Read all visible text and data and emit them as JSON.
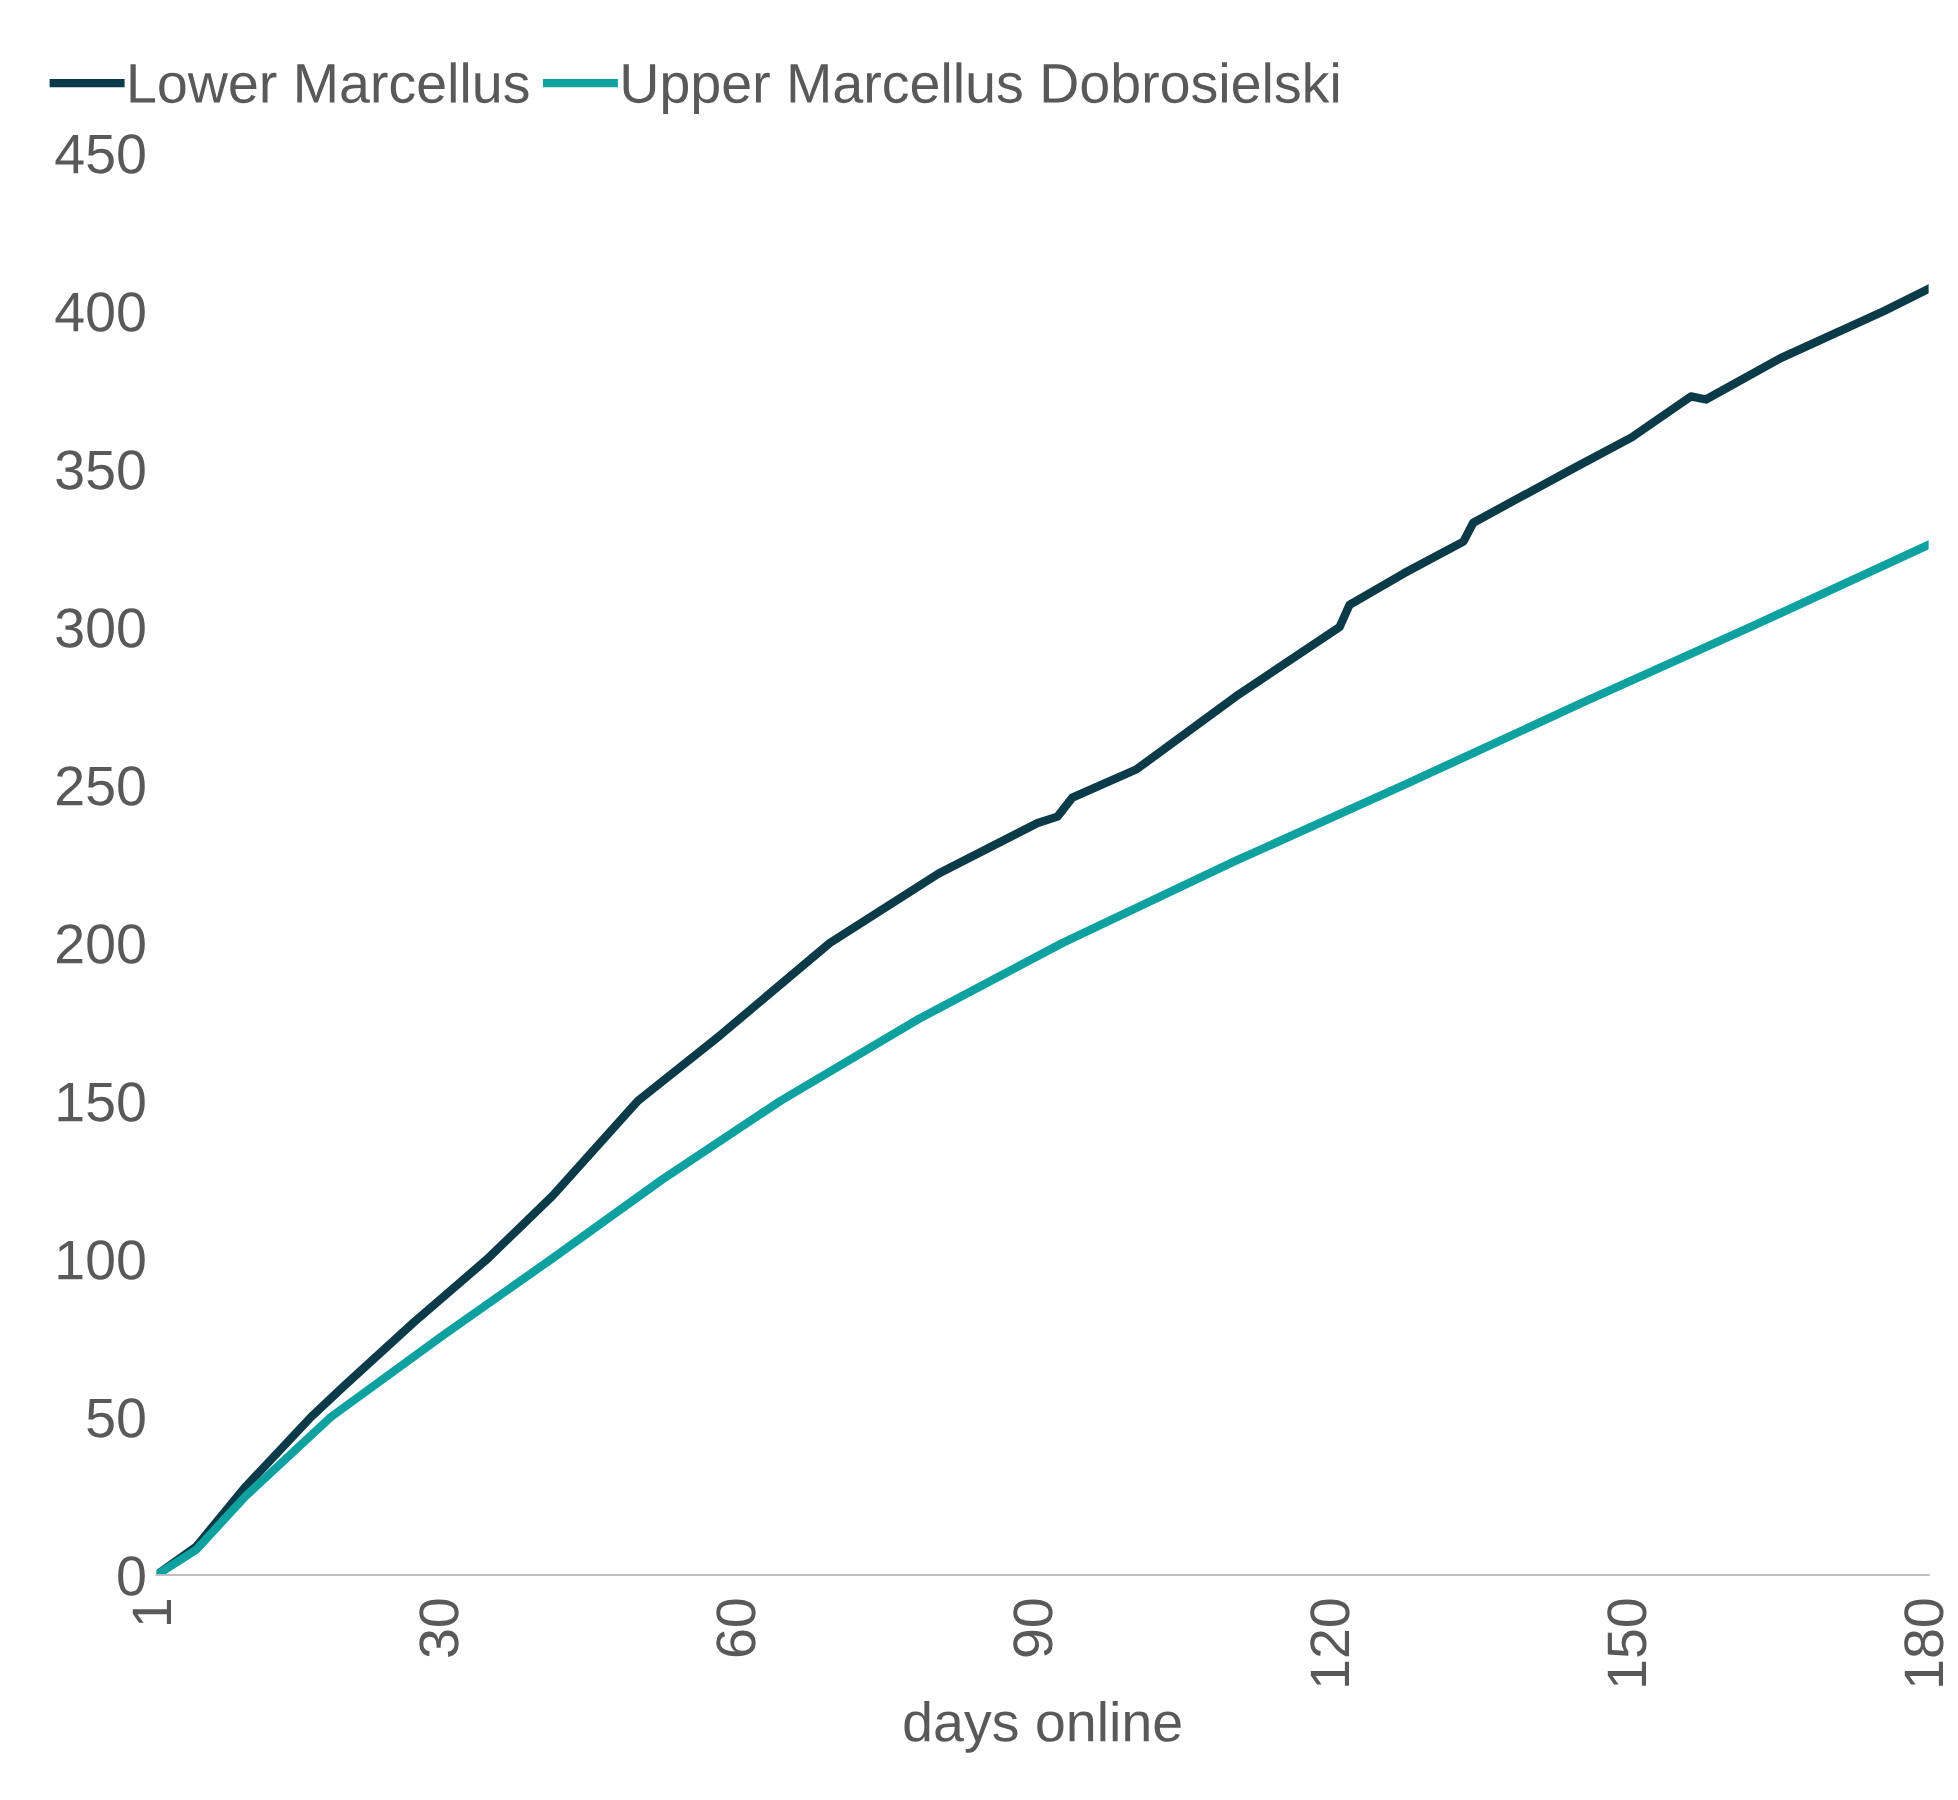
{
  "chart_data": {
    "type": "line",
    "xlabel": "days online",
    "xlim": [
      1,
      180
    ],
    "xticks": [
      1,
      30,
      60,
      90,
      120,
      150,
      180
    ],
    "ylim": [
      0,
      450
    ],
    "yticks": [
      0,
      50,
      100,
      150,
      200,
      250,
      300,
      350,
      400,
      450
    ],
    "grid": false,
    "legend": "top left",
    "marker": "none",
    "line_style": "solid",
    "series": [
      {
        "name": "Lower Marcellus",
        "color": "#0b3a48",
        "x": [
          1,
          5,
          10,
          16.6,
          20,
          27,
          34.4,
          41,
          49.6,
          58,
          69,
          80,
          90,
          92,
          93.5,
          100,
          110,
          120.5,
          121.5,
          127,
          133,
          134,
          144,
          150,
          156,
          157.5,
          165,
          175.5,
          180
        ],
        "values": [
          0,
          9,
          28,
          50,
          60,
          80,
          100,
          120,
          150,
          171,
          200,
          222,
          238,
          240,
          246,
          255,
          278,
          300,
          307,
          317,
          327,
          333,
          350,
          360,
          373,
          372,
          385,
          400,
          407
        ]
      },
      {
        "name": "Upper Marcellus Dobrosielski",
        "color": "#0fa0a0",
        "x": [
          1,
          5,
          10,
          18.6,
          30,
          40.9,
          52,
          64,
          78,
          92.5,
          110,
          127,
          145,
          162,
          180
        ],
        "values": [
          0,
          8,
          25,
          50,
          76,
          100,
          125,
          150,
          176,
          200,
          226,
          250,
          276,
          300,
          326
        ]
      }
    ]
  }
}
